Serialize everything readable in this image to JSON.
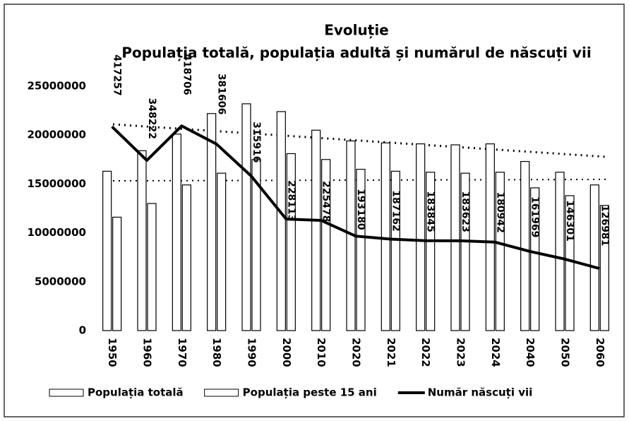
{
  "chart_data": {
    "type": "bar",
    "title": "Evoluție",
    "subtitle": "Populația totală, populația adultă și numărul de născuți vii",
    "categories": [
      "1950",
      "1960",
      "1970",
      "1980",
      "1990",
      "2000",
      "2010",
      "2020",
      "2021",
      "2022",
      "2023",
      "2024",
      "2040",
      "2050",
      "2060"
    ],
    "series": [
      {
        "name": "Populația totală",
        "color": "#ffffff",
        "values": [
          16300000,
          18400000,
          20100000,
          22200000,
          23200000,
          22400000,
          20500000,
          19400000,
          19200000,
          19100000,
          19000000,
          19100000,
          17300000,
          16200000,
          14900000
        ]
      },
      {
        "name": "Populația peste 15 ani",
        "color": "#ffffff",
        "values": [
          11600000,
          13000000,
          14900000,
          16100000,
          17500000,
          18100000,
          17500000,
          16500000,
          16300000,
          16200000,
          16100000,
          16200000,
          14600000,
          13800000,
          12800000
        ]
      },
      {
        "name": "Număr născuți vii",
        "type": "line",
        "axis": "y2",
        "color": "#000000",
        "values": [
          417257,
          348222,
          418706,
          381606,
          315916,
          228113,
          225478,
          193180,
          187162,
          183845,
          183623,
          180942,
          161969,
          146301,
          126981
        ]
      }
    ],
    "ylim": [
      0,
      25000000
    ],
    "yticks": [
      0,
      5000000,
      10000000,
      15000000,
      20000000,
      25000000
    ],
    "y2lim": [
      0,
      500000
    ],
    "legend": "bottom"
  }
}
